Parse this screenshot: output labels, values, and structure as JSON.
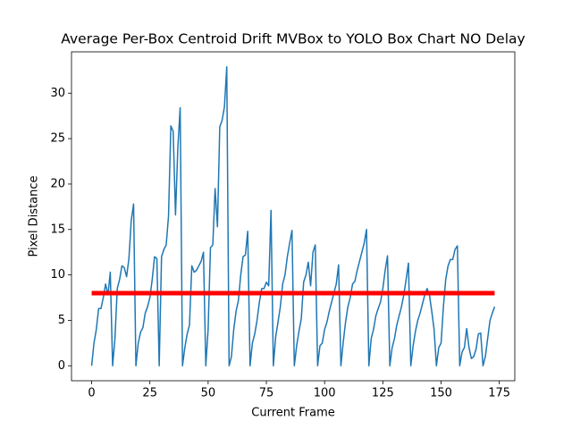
{
  "chart_data": {
    "type": "line",
    "title": "Average Per-Box Centroid Drift MVBox to YOLO Box Chart NO Delay",
    "xlabel": "Current Frame",
    "ylabel": "Pixel Distance",
    "xlim": [
      -8.65,
      181.65
    ],
    "ylim": [
      -1.645,
      34.55
    ],
    "xticks": [
      0,
      25,
      50,
      75,
      100,
      125,
      150,
      175
    ],
    "yticks": [
      0,
      5,
      10,
      15,
      20,
      25,
      30
    ],
    "series": [
      {
        "color": "#1f77b4",
        "linewidth": 1.5,
        "x": [
          0,
          1,
          2,
          3,
          4,
          5,
          6,
          7,
          8,
          9,
          10,
          11,
          12,
          13,
          14,
          15,
          16,
          17,
          18,
          19,
          20,
          21,
          22,
          23,
          24,
          25,
          26,
          27,
          28,
          29,
          30,
          31,
          32,
          33,
          34,
          35,
          36,
          37,
          38,
          39,
          40,
          41,
          42,
          43,
          44,
          45,
          46,
          47,
          48,
          49,
          50,
          51,
          52,
          53,
          54,
          55,
          56,
          57,
          58,
          59,
          60,
          61,
          62,
          63,
          64,
          65,
          66,
          67,
          68,
          69,
          70,
          71,
          72,
          73,
          74,
          75,
          76,
          77,
          78,
          79,
          80,
          81,
          82,
          83,
          84,
          85,
          86,
          87,
          88,
          89,
          90,
          91,
          92,
          93,
          94,
          95,
          96,
          97,
          98,
          99,
          100,
          101,
          102,
          103,
          104,
          105,
          106,
          107,
          108,
          109,
          110,
          111,
          112,
          113,
          114,
          115,
          116,
          117,
          118,
          119,
          120,
          121,
          122,
          123,
          124,
          125,
          126,
          127,
          128,
          129,
          130,
          131,
          132,
          133,
          134,
          135,
          136,
          137,
          138,
          139,
          140,
          141,
          142,
          143,
          144,
          145,
          146,
          147,
          148,
          149,
          150,
          151,
          152,
          153,
          154,
          155,
          156,
          157,
          158,
          159,
          160,
          161,
          162,
          163,
          164,
          165,
          166,
          167,
          168,
          169,
          170,
          171,
          172,
          173
        ],
        "values": [
          0,
          2.5,
          4,
          6.3,
          6.3,
          7.5,
          9,
          7.8,
          10.3,
          0,
          3,
          8.5,
          9.5,
          11,
          10.8,
          9.8,
          11.8,
          16,
          17.8,
          0,
          2.5,
          3.7,
          4.2,
          5.8,
          6.5,
          7.5,
          9.5,
          12,
          11.8,
          0,
          12,
          12.8,
          13.3,
          16.5,
          26.4,
          25.8,
          16.6,
          24,
          28.4,
          0,
          2,
          3.5,
          4.5,
          11,
          10.3,
          10.5,
          11,
          11.5,
          12.5,
          0,
          4,
          13,
          13.3,
          19.5,
          15.3,
          26.3,
          27,
          28.5,
          32.9,
          0,
          1,
          4,
          6,
          7.2,
          10,
          12,
          12.2,
          14.8,
          0,
          2.5,
          3.5,
          5,
          7,
          8.5,
          8.5,
          9.2,
          8.8,
          17.1,
          0,
          3.2,
          4.8,
          6.5,
          9,
          10,
          12,
          13.5,
          14.9,
          0,
          2.2,
          3.8,
          5.2,
          9.2,
          10,
          11.4,
          8.8,
          12.5,
          13.3,
          0,
          2.2,
          2.5,
          4,
          4.8,
          6,
          7,
          8,
          9,
          11.1,
          0,
          2.6,
          4.8,
          6.5,
          7.5,
          9,
          9.3,
          10.5,
          11.5,
          12.5,
          13.5,
          15,
          0,
          3,
          4,
          5.5,
          6.3,
          7,
          8.5,
          10.5,
          12.1,
          0,
          2,
          3,
          4.5,
          5.5,
          6.5,
          7.8,
          9.5,
          11.3,
          0,
          2.2,
          3.8,
          5,
          5.8,
          6.8,
          7.8,
          8.5,
          7.8,
          6,
          4,
          0,
          2,
          2.5,
          6.5,
          9.5,
          11,
          11.7,
          11.7,
          12.8,
          13.2,
          0,
          1.5,
          2,
          4.1,
          2,
          0.8,
          1,
          1.8,
          3.5,
          3.6,
          0,
          1,
          3,
          5,
          5.8,
          6.5
        ]
      },
      {
        "color": "#ff0000",
        "linewidth": 5,
        "x": [
          0,
          173
        ],
        "values": [
          8,
          8
        ]
      }
    ]
  }
}
